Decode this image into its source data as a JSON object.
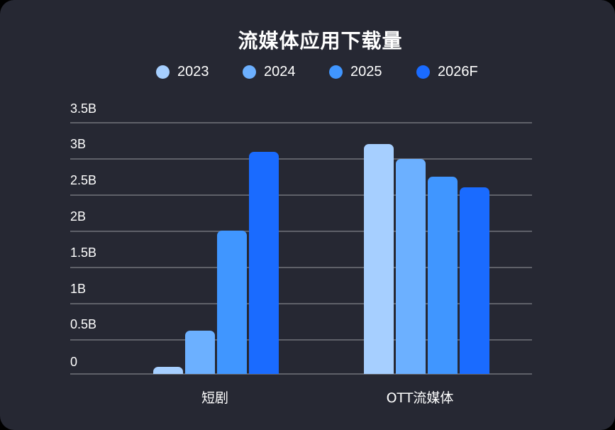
{
  "title": "流媒体应用下载量",
  "legend": [
    {
      "label": "2023",
      "color": "#a6cfff"
    },
    {
      "label": "2024",
      "color": "#6cb0ff"
    },
    {
      "label": "2025",
      "color": "#4096ff"
    },
    {
      "label": "2026F",
      "color": "#1a6bff"
    }
  ],
  "y_ticks": [
    "0",
    "0.5B",
    "1B",
    "1.5B",
    "2B",
    "2.5B",
    "3B",
    "3.5B"
  ],
  "x_labels": [
    "短剧",
    "OTT流媒体"
  ],
  "chart_data": {
    "type": "bar",
    "title": "流媒体应用下载量",
    "xlabel": "",
    "ylabel": "",
    "categories": [
      "短剧",
      "OTT流媒体"
    ],
    "series": [
      {
        "name": "2023",
        "values": [
          0.1,
          3.2
        ],
        "color": "#a6cfff"
      },
      {
        "name": "2024",
        "values": [
          0.6,
          3.0
        ],
        "color": "#6cb0ff"
      },
      {
        "name": "2025",
        "values": [
          2.0,
          2.75
        ],
        "color": "#4096ff"
      },
      {
        "name": "2026F",
        "values": [
          3.1,
          2.6
        ],
        "color": "#1a6bff"
      }
    ],
    "unit": "B (billions)",
    "ylim": [
      0,
      3.5
    ],
    "y_ticks": [
      0,
      0.5,
      1,
      1.5,
      2,
      2.5,
      3,
      3.5
    ],
    "y_tick_labels": [
      "0",
      "0.5B",
      "1B",
      "1.5B",
      "2B",
      "2.5B",
      "3B",
      "3.5B"
    ],
    "grid": true,
    "legend_position": "top"
  }
}
